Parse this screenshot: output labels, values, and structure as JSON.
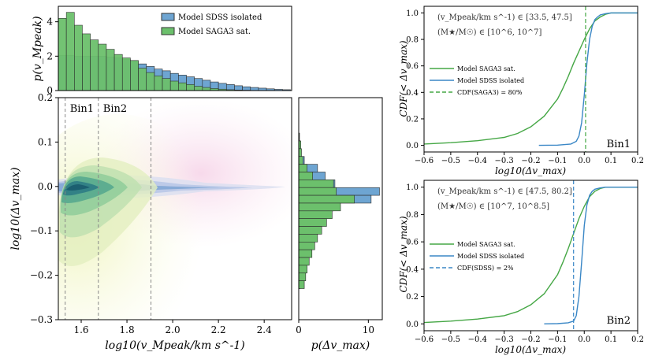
{
  "colors": {
    "sdss": "#3a87c6",
    "saga": "#45a745",
    "sdss_hist": "#6ea5d2",
    "saga_hist": "#6cc06c",
    "bin_line": "#888888"
  },
  "chart_data": [
    {
      "id": "top_hist",
      "type": "bar",
      "ylabel": "p(v_Mpeak)",
      "xlim": [
        1.5,
        2.52
      ],
      "ylim": [
        0,
        4.9
      ],
      "yticks": [
        "0",
        "2",
        "4"
      ],
      "bin_edges_start": 1.5,
      "bin_width": 0.035,
      "series": [
        {
          "name": "Model SDSS isolated",
          "values": [
            2.05,
            2.05,
            2.0,
            2.0,
            2.0,
            2.0,
            1.95,
            1.9,
            1.8,
            1.7,
            1.55,
            1.4,
            1.25,
            1.15,
            1.0,
            0.9,
            0.8,
            0.7,
            0.6,
            0.5,
            0.42,
            0.35,
            0.28,
            0.22,
            0.18,
            0.14,
            0.1,
            0.07,
            0.05
          ]
        },
        {
          "name": "Model SAGA3 sat.",
          "values": [
            4.2,
            4.55,
            3.8,
            3.3,
            2.95,
            2.7,
            2.4,
            2.1,
            1.9,
            1.75,
            1.3,
            1.05,
            0.85,
            0.7,
            0.55,
            0.45,
            0.35,
            0.25,
            0.18,
            0.12,
            0.08,
            0.05,
            0.03,
            0.02,
            0.01,
            0.0,
            0.0,
            0.0,
            0.0
          ]
        }
      ]
    },
    {
      "id": "main_contour",
      "type": "heatmap",
      "xlabel": "log10(v_Mpeak/km s^-1)",
      "ylabel": "log10(Δv_max)",
      "xlim": [
        1.5,
        2.52
      ],
      "ylim": [
        -0.3,
        0.2
      ],
      "xticks": [
        "1.6",
        "1.8",
        "2.0",
        "2.2",
        "2.4"
      ],
      "xtick_values": [
        1.6,
        1.8,
        2.0,
        2.2,
        2.4
      ],
      "yticks": [
        "−0.3",
        "−0.2",
        "−0.1",
        "0.0",
        "0.1",
        "0.2"
      ],
      "ytick_values": [
        -0.3,
        -0.2,
        -0.1,
        0.0,
        0.1,
        0.2
      ],
      "bin_edges": [
        1.53,
        1.675,
        1.905
      ],
      "bin_labels": [
        "Bin1",
        "Bin2"
      ]
    },
    {
      "id": "side_hist",
      "type": "bar",
      "orientation": "horizontal",
      "xlabel": "p(Δv_max)",
      "xlim": [
        0,
        12
      ],
      "xticks": [
        "0",
        "10"
      ],
      "xtick_values": [
        0,
        10
      ],
      "ylim": [
        -0.3,
        0.2
      ],
      "bin_start": 0.12,
      "bin_width": 0.0175,
      "series": [
        {
          "name": "Model SDSS isolated",
          "values": [
            0.1,
            0.2,
            0.3,
            0.8,
            2.7,
            3.8,
            5.2,
            11.6,
            10.4,
            5.0,
            3.0,
            1.8,
            1.4,
            1.1,
            0.9,
            0.7,
            0.6,
            0.5,
            0.3,
            0.2
          ]
        },
        {
          "name": "Model SAGA3 sat.",
          "values": [
            0.1,
            0.3,
            0.4,
            0.6,
            1.2,
            2.0,
            5.0,
            5.4,
            8.0,
            6.0,
            4.8,
            4.0,
            3.3,
            2.7,
            2.3,
            1.9,
            1.5,
            1.2,
            1.0,
            0.8
          ]
        }
      ]
    },
    {
      "id": "cdf_bin1",
      "type": "line",
      "xlabel": "log10(Δv_max)",
      "ylabel": "CDF(< Δv_max)",
      "xlim": [
        -0.6,
        0.2
      ],
      "ylim": [
        -0.05,
        1.05
      ],
      "xticks": [
        "−0.6",
        "−0.5",
        "−0.4",
        "−0.3",
        "−0.2",
        "−0.1",
        "0.0",
        "0.1",
        "0.2"
      ],
      "xtick_values": [
        -0.6,
        -0.5,
        -0.4,
        -0.3,
        -0.2,
        -0.1,
        0.0,
        0.1,
        0.2
      ],
      "yticks": [
        "0.0",
        "0.2",
        "0.4",
        "0.6",
        "0.8",
        "1.0"
      ],
      "ytick_values": [
        0.0,
        0.2,
        0.4,
        0.6,
        0.8,
        1.0
      ],
      "annotation1": "(v_Mpeak/km s^-1) ∈ [33.5, 47.5]",
      "annotation2": "(M★/M☉) ∈ [10^6, 10^7]",
      "bin_label": "Bin1",
      "vline_x": 0.005,
      "legend": [
        "Model SAGA3 sat.",
        "Model SDSS isolated",
        "CDF(SAGA3) = 80%"
      ],
      "series": [
        {
          "name": "Model SAGA3 sat.",
          "x": [
            -0.6,
            -0.5,
            -0.4,
            -0.3,
            -0.25,
            -0.2,
            -0.15,
            -0.1,
            -0.08,
            -0.06,
            -0.04,
            -0.02,
            0.0,
            0.02,
            0.04,
            0.06,
            0.08,
            0.1,
            0.15,
            0.2
          ],
          "y": [
            0.01,
            0.02,
            0.035,
            0.06,
            0.09,
            0.14,
            0.22,
            0.35,
            0.43,
            0.52,
            0.62,
            0.71,
            0.8,
            0.88,
            0.94,
            0.97,
            0.99,
            1.0,
            1.0,
            1.0
          ]
        },
        {
          "name": "Model SDSS isolated",
          "x": [
            -0.17,
            -0.1,
            -0.05,
            -0.03,
            -0.02,
            -0.01,
            0.0,
            0.01,
            0.02,
            0.03,
            0.04,
            0.05,
            0.06,
            0.08,
            0.1,
            0.15,
            0.2
          ],
          "y": [
            0.0,
            0.002,
            0.01,
            0.03,
            0.07,
            0.17,
            0.38,
            0.62,
            0.8,
            0.9,
            0.95,
            0.97,
            0.985,
            0.995,
            1.0,
            1.0,
            1.0
          ]
        }
      ]
    },
    {
      "id": "cdf_bin2",
      "type": "line",
      "xlabel": "log10(Δv_max)",
      "ylabel": "CDF(< Δv_max)",
      "xlim": [
        -0.6,
        0.2
      ],
      "ylim": [
        -0.05,
        1.05
      ],
      "xticks": [
        "−0.6",
        "−0.5",
        "−0.4",
        "−0.3",
        "−0.2",
        "−0.1",
        "0.0",
        "0.1",
        "0.2"
      ],
      "xtick_values": [
        -0.6,
        -0.5,
        -0.4,
        -0.3,
        -0.2,
        -0.1,
        0.0,
        0.1,
        0.2
      ],
      "yticks": [
        "0.0",
        "0.2",
        "0.4",
        "0.6",
        "0.8",
        "1.0"
      ],
      "ytick_values": [
        0.0,
        0.2,
        0.4,
        0.6,
        0.8,
        1.0
      ],
      "annotation1": "(v_Mpeak/km s^-1) ∈ [47.5, 80.2]",
      "annotation2": "(M★/M☉) ∈ [10^7, 10^8.5]",
      "bin_label": "Bin2",
      "vline_x": -0.04,
      "legend": [
        "Model SAGA3 sat.",
        "Model SDSS isolated",
        "CDF(SDSS) = 2%"
      ],
      "series": [
        {
          "name": "Model SAGA3 sat.",
          "x": [
            -0.6,
            -0.5,
            -0.4,
            -0.3,
            -0.25,
            -0.2,
            -0.15,
            -0.1,
            -0.08,
            -0.06,
            -0.04,
            -0.02,
            0.0,
            0.02,
            0.04,
            0.06,
            0.08,
            0.1,
            0.15,
            0.2
          ],
          "y": [
            0.01,
            0.02,
            0.035,
            0.06,
            0.09,
            0.14,
            0.22,
            0.36,
            0.45,
            0.55,
            0.66,
            0.77,
            0.86,
            0.93,
            0.97,
            0.99,
            1.0,
            1.0,
            1.0,
            1.0
          ]
        },
        {
          "name": "Model SDSS isolated",
          "x": [
            -0.15,
            -0.1,
            -0.06,
            -0.04,
            -0.03,
            -0.02,
            -0.01,
            0.0,
            0.01,
            0.02,
            0.03,
            0.04,
            0.06,
            0.08,
            0.1,
            0.15,
            0.2
          ],
          "y": [
            0.0,
            0.002,
            0.008,
            0.02,
            0.06,
            0.2,
            0.45,
            0.72,
            0.87,
            0.94,
            0.97,
            0.985,
            0.995,
            1.0,
            1.0,
            1.0,
            1.0
          ]
        }
      ]
    }
  ]
}
